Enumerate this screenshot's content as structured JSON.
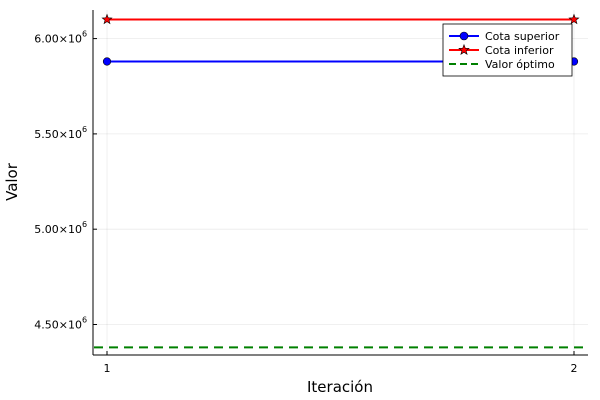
{
  "chart_data": {
    "type": "line",
    "xlabel": "Iteración",
    "ylabel": "Valor",
    "x": [
      1,
      2
    ],
    "xticks": [
      1,
      2
    ],
    "xtick_labels": [
      "1",
      "2"
    ],
    "xlim": [
      0.97,
      2.03
    ],
    "ylim": [
      4340000,
      6150000
    ],
    "yticks": [
      4500000,
      5000000,
      5500000,
      6000000
    ],
    "ytick_labels": [
      {
        "mantissa": "4.50×10",
        "exp": "6"
      },
      {
        "mantissa": "5.00×10",
        "exp": "6"
      },
      {
        "mantissa": "5.50×10",
        "exp": "6"
      },
      {
        "mantissa": "6.00×10",
        "exp": "6"
      }
    ],
    "grid": true,
    "legend_position": "top-right",
    "series": [
      {
        "name": "Cota superior",
        "values": [
          5880000,
          5880000
        ],
        "color": "#0000ff",
        "marker": "circle",
        "style": "solid"
      },
      {
        "name": "Cota inferior",
        "values": [
          6100000,
          6100000
        ],
        "color": "#ff0000",
        "marker": "star",
        "style": "solid"
      }
    ],
    "hlines": [
      {
        "name": "Valor óptimo",
        "value": 4380000,
        "color": "#008000",
        "style": "dashed"
      }
    ]
  }
}
